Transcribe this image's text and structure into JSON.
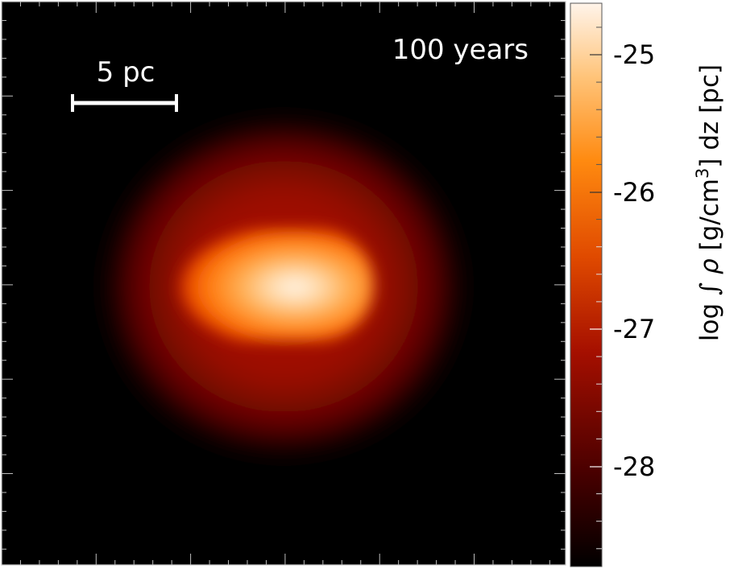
{
  "panel": {
    "time_label": "100 years",
    "scalebar": {
      "label": "5 pc",
      "length_pc": 5
    }
  },
  "colorbar": {
    "label_parts": {
      "prefix": "log ",
      "integral": "∫",
      "rho": "ρ",
      "units_open": " [g/cm",
      "units_exp": "3",
      "units_close": "]",
      "dz": " dz",
      "pc": " [pc]"
    },
    "ticks": [
      "-25",
      "-26",
      "-27",
      "-28"
    ],
    "colormap": "hot",
    "colors": [
      "#000000",
      "#4a0000",
      "#a50f00",
      "#e04a00",
      "#ff8a10",
      "#ffc47a",
      "#fff4ea"
    ]
  }
}
